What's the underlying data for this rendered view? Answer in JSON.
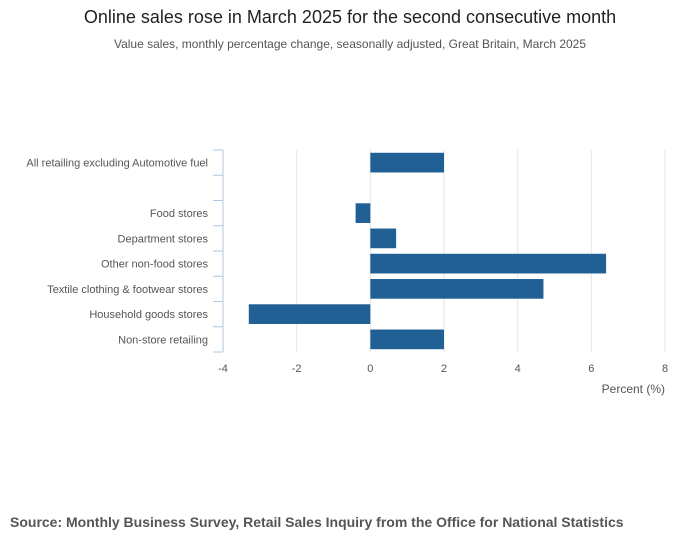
{
  "title": "Online sales rose in March 2025 for the second consecutive month",
  "subtitle": "Value sales, monthly percentage change, seasonally adjusted, Great Britain, March 2025",
  "source": "Source: Monthly Business Survey, Retail Sales Inquiry from the Office for National Statistics",
  "colors": {
    "bar": "#206095",
    "grid": "#e6e6e6",
    "axis": "#b3c7dd",
    "text": "#555555"
  },
  "chart_data": {
    "type": "bar",
    "orientation": "horizontal",
    "categories": [
      "All retailing excluding Automotive fuel",
      "",
      "Food stores",
      "Department stores",
      "Other non-food stores",
      "Textile clothing & footwear stores",
      "Household goods stores",
      "Non-store retailing"
    ],
    "values": [
      2.0,
      null,
      -0.4,
      0.7,
      6.4,
      4.7,
      -3.3,
      2.0
    ],
    "xlabel": "Percent (%)",
    "ylabel": "",
    "xlim": [
      -4,
      8
    ],
    "xticks": [
      -4,
      -2,
      0,
      2,
      4,
      6,
      8
    ],
    "grid": true,
    "legend": "none"
  }
}
